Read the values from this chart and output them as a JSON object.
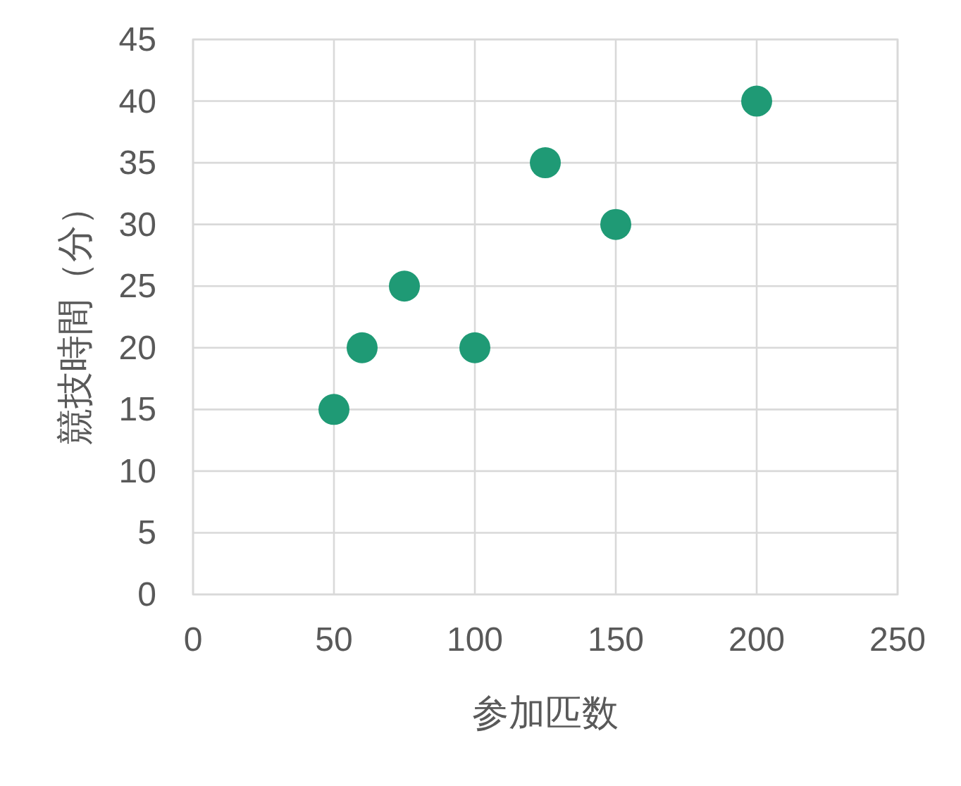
{
  "chart_data": {
    "type": "scatter",
    "xlabel": "参加匹数",
    "ylabel": "競技時間（分）",
    "x": [
      50,
      60,
      75,
      100,
      125,
      150,
      200
    ],
    "series": [
      {
        "color": "#1f9a75",
        "values": [
          15,
          20,
          25,
          20,
          35,
          30,
          40
        ]
      }
    ],
    "xlim": [
      0,
      250
    ],
    "xticks": [
      0,
      50,
      100,
      150,
      200,
      250
    ],
    "ylim": [
      0,
      45
    ],
    "yticks": [
      0,
      5,
      10,
      15,
      20,
      25,
      30,
      35,
      40,
      45
    ],
    "grid": true,
    "marker": "circle"
  }
}
